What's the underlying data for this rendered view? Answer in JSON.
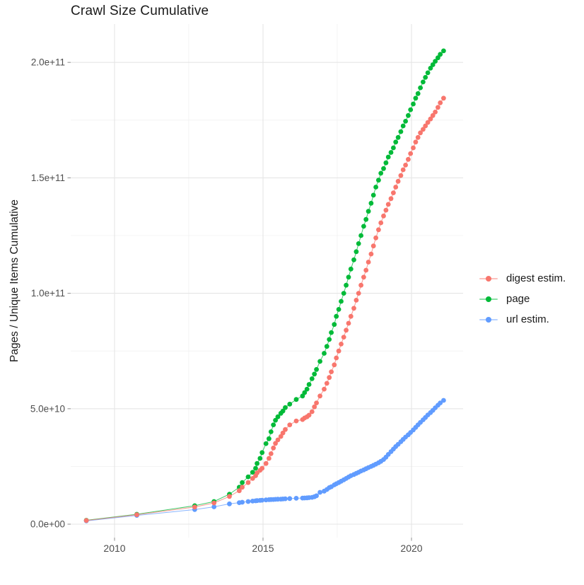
{
  "chart_data": {
    "type": "scatter",
    "title": "Crawl Size Cumulative",
    "xlabel": "",
    "ylabel": "Pages / Unique Items Cumulative",
    "legend_position": "right",
    "grid": "on",
    "x_axis": {
      "tick_labels": [
        "2010",
        "2015",
        "2020"
      ],
      "tick_values": [
        2010,
        2015,
        2020
      ],
      "minor_gridlines": [
        2012.5,
        2017.5
      ],
      "range": [
        2008.5,
        2021.75
      ]
    },
    "y_axis": {
      "unit": "1e9 (values below are billions)",
      "tick_labels": [
        "0.0e+00",
        "5.0e+10",
        "1.0e+11",
        "1.5e+11",
        "2.0e+11"
      ],
      "tick_values_e9": [
        0,
        50,
        100,
        150,
        200
      ],
      "minor_gridlines_e9": [
        25,
        75,
        125,
        175
      ],
      "range_e9": [
        -6,
        216
      ]
    },
    "x_years": [
      2009.05,
      2010.75,
      2012.7,
      2013.35,
      2013.87,
      2014.2,
      2014.3,
      2014.5,
      2014.65,
      2014.75,
      2014.8,
      2014.9,
      2014.97,
      2015.1,
      2015.2,
      2015.27,
      2015.35,
      2015.42,
      2015.5,
      2015.6,
      2015.67,
      2015.75,
      2015.9,
      2016.12,
      2016.33,
      2016.4,
      2016.48,
      2016.55,
      2016.65,
      2016.73,
      2016.8,
      2016.92,
      2017.06,
      2017.15,
      2017.23,
      2017.3,
      2017.4,
      2017.47,
      2017.55,
      2017.63,
      2017.72,
      2017.8,
      2017.88,
      2017.96,
      2018.06,
      2018.14,
      2018.22,
      2018.3,
      2018.39,
      2018.47,
      2018.55,
      2018.64,
      2018.72,
      2018.8,
      2018.89,
      2018.97,
      2019.06,
      2019.14,
      2019.22,
      2019.31,
      2019.39,
      2019.47,
      2019.55,
      2019.64,
      2019.72,
      2019.8,
      2019.89,
      2019.97,
      2020.06,
      2020.14,
      2020.22,
      2020.3,
      2020.39,
      2020.47,
      2020.55,
      2020.64,
      2020.72,
      2020.8,
      2020.89,
      2020.97,
      2021.08
    ],
    "series": [
      {
        "name": "digest estim.",
        "color": "#F8766D",
        "values_e9": [
          1.6,
          4.1,
          7.4,
          9.2,
          12.0,
          14.5,
          16.0,
          18.0,
          19.8,
          21.0,
          22.2,
          23.3,
          24.2,
          26.3,
          28.5,
          30.5,
          33.0,
          35.0,
          36.5,
          38.0,
          39.5,
          41.0,
          43.0,
          44.7,
          45.3,
          46.0,
          46.5,
          47.2,
          48.7,
          50.8,
          52.5,
          55.5,
          58.5,
          61.0,
          63.5,
          66.0,
          69.0,
          72.0,
          75.0,
          78.0,
          81.0,
          84.0,
          87.0,
          90.0,
          93.5,
          97.0,
          100.0,
          103.5,
          107.0,
          110.0,
          113.5,
          117.0,
          120.5,
          124.0,
          127.5,
          130.5,
          133.5,
          136.0,
          138.5,
          141.0,
          143.5,
          146.0,
          148.5,
          151.0,
          153.5,
          155.5,
          158.0,
          160.5,
          163.0,
          165.5,
          167.5,
          169.5,
          171.0,
          172.5,
          174.0,
          175.5,
          177.0,
          178.5,
          180.5,
          182.5,
          184.5
        ]
      },
      {
        "name": "page",
        "color": "#00BA38",
        "values_e9": [
          1.7,
          4.3,
          8.0,
          9.8,
          13.0,
          16.0,
          18.0,
          20.5,
          22.5,
          24.2,
          26.3,
          28.5,
          31.0,
          34.9,
          37.0,
          40.0,
          43.0,
          45.0,
          46.5,
          48.0,
          49.0,
          50.5,
          52.0,
          54.0,
          55.5,
          57.0,
          58.5,
          60.5,
          63.0,
          65.0,
          67.0,
          70.5,
          74.0,
          77.0,
          80.0,
          83.0,
          86.5,
          90.0,
          93.0,
          96.5,
          100.0,
          103.5,
          107.0,
          110.5,
          114.5,
          118.0,
          121.5,
          125.0,
          129.0,
          132.0,
          135.5,
          139.0,
          142.5,
          146.0,
          149.0,
          152.0,
          154.0,
          156.5,
          159.0,
          161.0,
          163.0,
          165.5,
          167.5,
          170.0,
          172.5,
          174.5,
          177.0,
          179.5,
          182.0,
          184.5,
          186.5,
          189.0,
          191.5,
          193.5,
          195.5,
          197.5,
          199.0,
          200.5,
          202.0,
          203.5,
          205.0
        ]
      },
      {
        "name": "url estim.",
        "color": "#619CFF",
        "values_e9": [
          1.4,
          3.8,
          6.3,
          7.5,
          8.8,
          9.3,
          9.5,
          9.8,
          10.0,
          10.1,
          10.2,
          10.3,
          10.4,
          10.5,
          10.6,
          10.65,
          10.7,
          10.75,
          10.8,
          10.85,
          10.9,
          11.0,
          11.1,
          11.2,
          11.3,
          11.35,
          11.4,
          11.5,
          11.6,
          11.9,
          12.3,
          13.8,
          14.3,
          15.0,
          15.8,
          16.2,
          17.0,
          17.5,
          18.0,
          18.6,
          19.2,
          19.8,
          20.4,
          21.0,
          21.5,
          22.0,
          22.5,
          23.0,
          23.5,
          24.0,
          24.5,
          25.0,
          25.5,
          26.0,
          26.6,
          27.2,
          28.0,
          29.0,
          30.2,
          31.4,
          32.5,
          33.6,
          34.6,
          35.7,
          36.7,
          37.7,
          38.7,
          39.7,
          40.8,
          41.9,
          43.0,
          44.1,
          45.2,
          46.2,
          47.3,
          48.3,
          49.3,
          50.4,
          51.5,
          52.5,
          53.6
        ]
      }
    ],
    "style": {
      "grid_major_color": "#e5e5e5",
      "grid_minor_color": "#f1f1f1",
      "tick_color": "#999999",
      "tick_label_color": "#4d4d4d",
      "point_radius": 3.4
    }
  }
}
